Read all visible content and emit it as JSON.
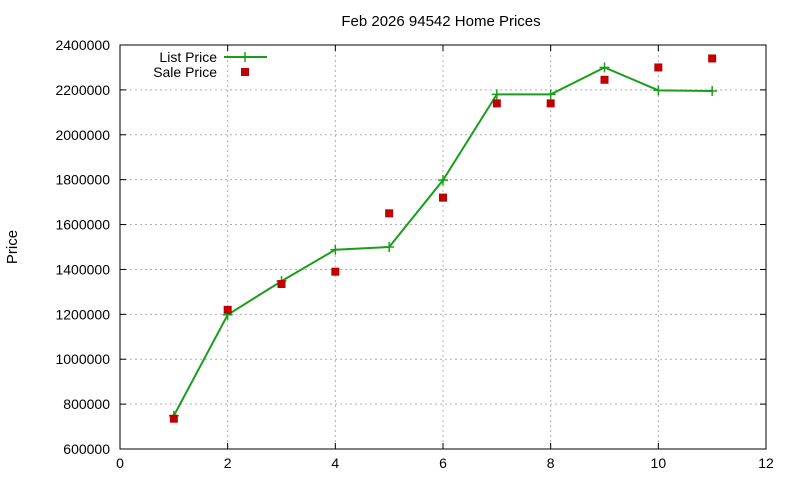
{
  "chart_data": {
    "type": "line",
    "title": "Feb 2026 94542 Home Prices",
    "xlabel": "",
    "ylabel": "Price",
    "xlim": [
      0,
      12
    ],
    "ylim": [
      600000,
      2400000
    ],
    "xticks": [
      0,
      2,
      4,
      6,
      8,
      10,
      12
    ],
    "yticks": [
      600000,
      800000,
      1000000,
      1200000,
      1400000,
      1600000,
      1800000,
      2000000,
      2200000,
      2400000
    ],
    "grid": true,
    "legend_position": "top-left",
    "series": [
      {
        "name": "List Price",
        "style": "line-with-plus-markers",
        "color": "#1a9e1a",
        "x": [
          1,
          2,
          3,
          4,
          5,
          6,
          7,
          8,
          9,
          10,
          11
        ],
        "y": [
          748000,
          1198000,
          1348000,
          1488000,
          1500000,
          1798000,
          2180000,
          2180000,
          2300000,
          2198000,
          2195000
        ]
      },
      {
        "name": "Sale Price",
        "style": "square-markers",
        "color": "#c00000",
        "x": [
          1,
          2,
          3,
          4,
          5,
          6,
          7,
          8,
          9,
          10,
          11
        ],
        "y": [
          735000,
          1220000,
          1335000,
          1390000,
          1650000,
          1720000,
          2140000,
          2140000,
          2245000,
          2300000,
          2340000
        ]
      }
    ]
  }
}
